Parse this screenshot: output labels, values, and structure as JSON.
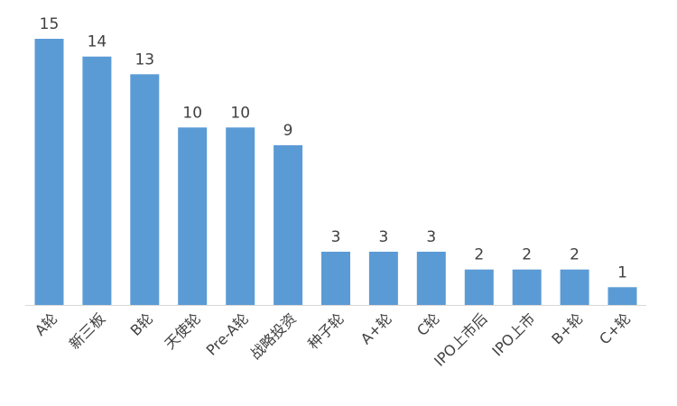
{
  "chart_data": {
    "type": "bar",
    "categories": [
      "A轮",
      "新三板",
      "B轮",
      "天使轮",
      "Pre-A轮",
      "战略投资",
      "种子轮",
      "A+轮",
      "C轮",
      "IPO上市后",
      "IPO上市",
      "B+轮",
      "C+轮"
    ],
    "values": [
      15,
      14,
      13,
      10,
      10,
      9,
      3,
      3,
      3,
      2,
      2,
      2,
      1
    ],
    "title": "",
    "xlabel": "",
    "ylabel": "",
    "ylim": [
      0,
      15
    ],
    "grid": false,
    "legend": "none",
    "bar_color": "#5b9bd5"
  }
}
